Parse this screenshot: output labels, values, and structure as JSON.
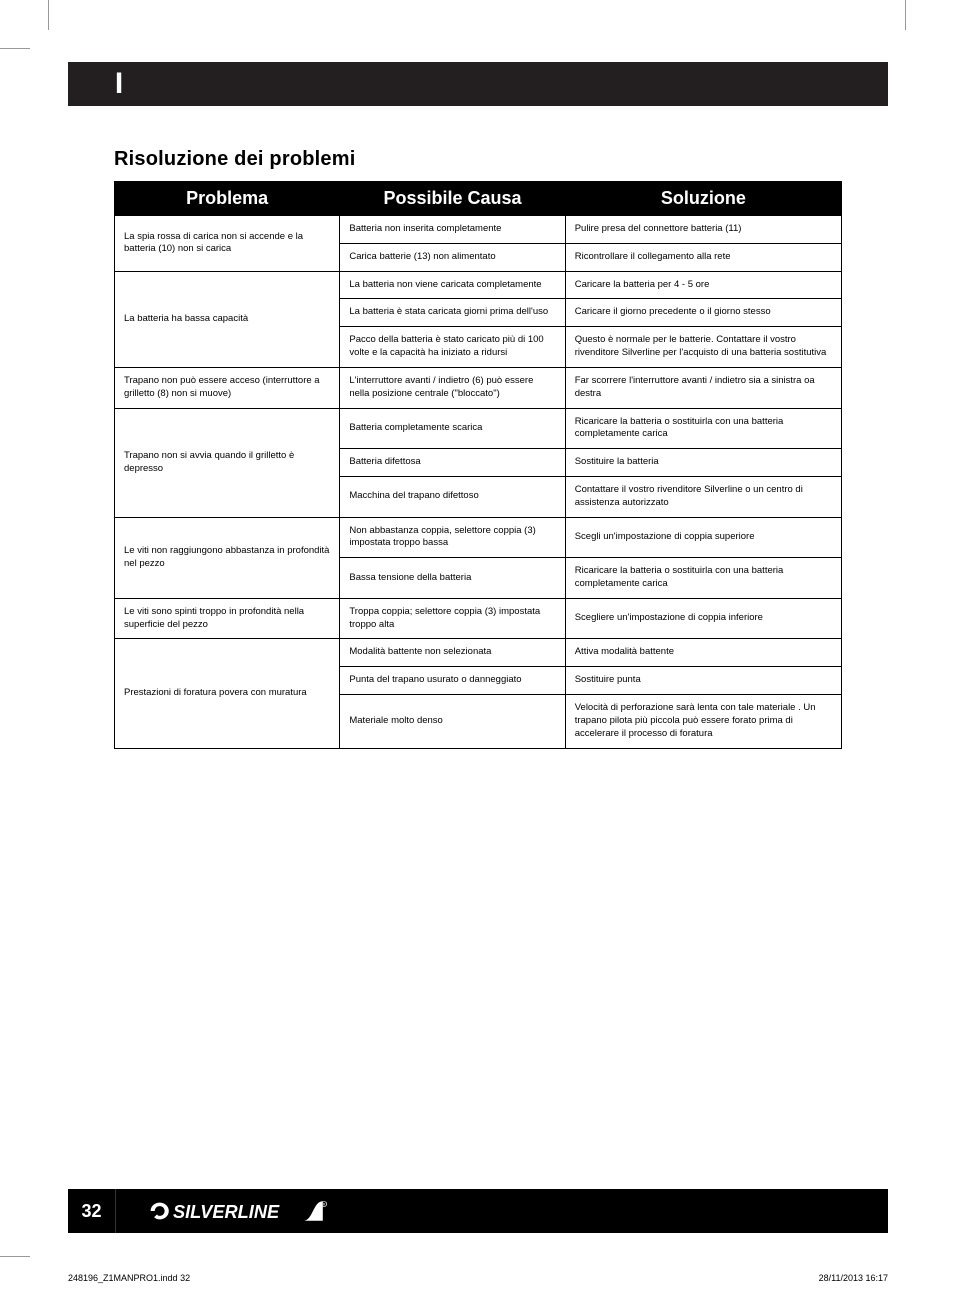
{
  "lang_letter": "I",
  "section_title": "Risoluzione dei problemi",
  "columns": [
    "Problema",
    "Possibile Causa",
    "Soluzione"
  ],
  "rows": [
    {
      "problem": "La spia rossa di carica non si accende e la batteria (10) non si carica",
      "cause": "Batteria non inserita completamente",
      "solution": "Pulire presa del connettore batteria (11)"
    },
    {
      "problem": "",
      "cause": "Carica batterie (13) non alimentato",
      "solution": "Ricontrollare il collegamento alla rete"
    },
    {
      "problem": "La batteria ha bassa capacità",
      "cause": "La batteria non viene caricata completamente",
      "solution": "Caricare la batteria per 4 - 5 ore"
    },
    {
      "problem": "",
      "cause": "La batteria è stata caricata giorni prima dell'uso",
      "solution": "Caricare il giorno precedente o il giorno stesso"
    },
    {
      "problem": "",
      "cause": "Pacco della batteria è stato caricato più di 100 volte e la capacità ha iniziato a ridursi",
      "solution": "Questo è normale per le batterie. Contattare il vostro rivenditore Silverline per l'acquisto di una batteria sostitutiva"
    },
    {
      "problem": "Trapano non può essere acceso (interruttore a grilletto (8) non si muove)",
      "cause": "L'interruttore avanti / indietro (6) può essere nella posizione centrale (\"bloccato\")",
      "solution": "Far scorrere l'interruttore avanti / indietro sia a sinistra oa destra"
    },
    {
      "problem": "Trapano non si avvia quando il grilletto è depresso",
      "cause": "Batteria completamente scarica",
      "solution": "Ricaricare la batteria o sostituirla con una batteria completamente carica"
    },
    {
      "problem": "",
      "cause": "Batteria difettosa",
      "solution": "Sostituire la batteria"
    },
    {
      "problem": "",
      "cause": "Macchina del trapano difettoso",
      "solution": "Contattare il vostro rivenditore Silverline o un centro di assistenza autorizzato"
    },
    {
      "problem": "Le viti non raggiungono abbastanza in profondità nel pezzo",
      "cause": "Non abbastanza coppia, selettore coppia (3) impostata troppo bassa",
      "solution": "Scegli un'impostazione di coppia superiore"
    },
    {
      "problem": "",
      "cause": "Bassa tensione della batteria",
      "solution": "Ricaricare la batteria o sostituirla con una batteria completamente carica"
    },
    {
      "problem": "Le viti sono spinti troppo in profondità nella superficie del pezzo",
      "cause": "Troppa coppia; selettore coppia (3) impostata troppo alta",
      "solution": "Scegliere un'impostazione di coppia inferiore"
    },
    {
      "problem": "Prestazioni di foratura povera con muratura",
      "cause": "Modalità battente non selezionata",
      "solution": "Attiva modalità battente"
    },
    {
      "problem": "",
      "cause": "Punta del trapano usurato o danneggiato",
      "solution": "Sostituire punta"
    },
    {
      "problem": "",
      "cause": "Materiale molto denso",
      "solution": "Velocità di perforazione sarà lenta con tale materiale . Un trapano pilota più piccola può essere forato prima di accelerare il processo di foratura"
    }
  ],
  "rowspans": [
    2,
    0,
    3,
    0,
    0,
    1,
    3,
    0,
    0,
    2,
    0,
    1,
    3,
    0,
    0
  ],
  "page_number": "32",
  "job_file": "248196_Z1MANPRO1.indd   32",
  "job_date": "28/11/2013   16:17",
  "colors": {
    "black": "#000000",
    "dark": "#231f20",
    "white": "#ffffff"
  }
}
